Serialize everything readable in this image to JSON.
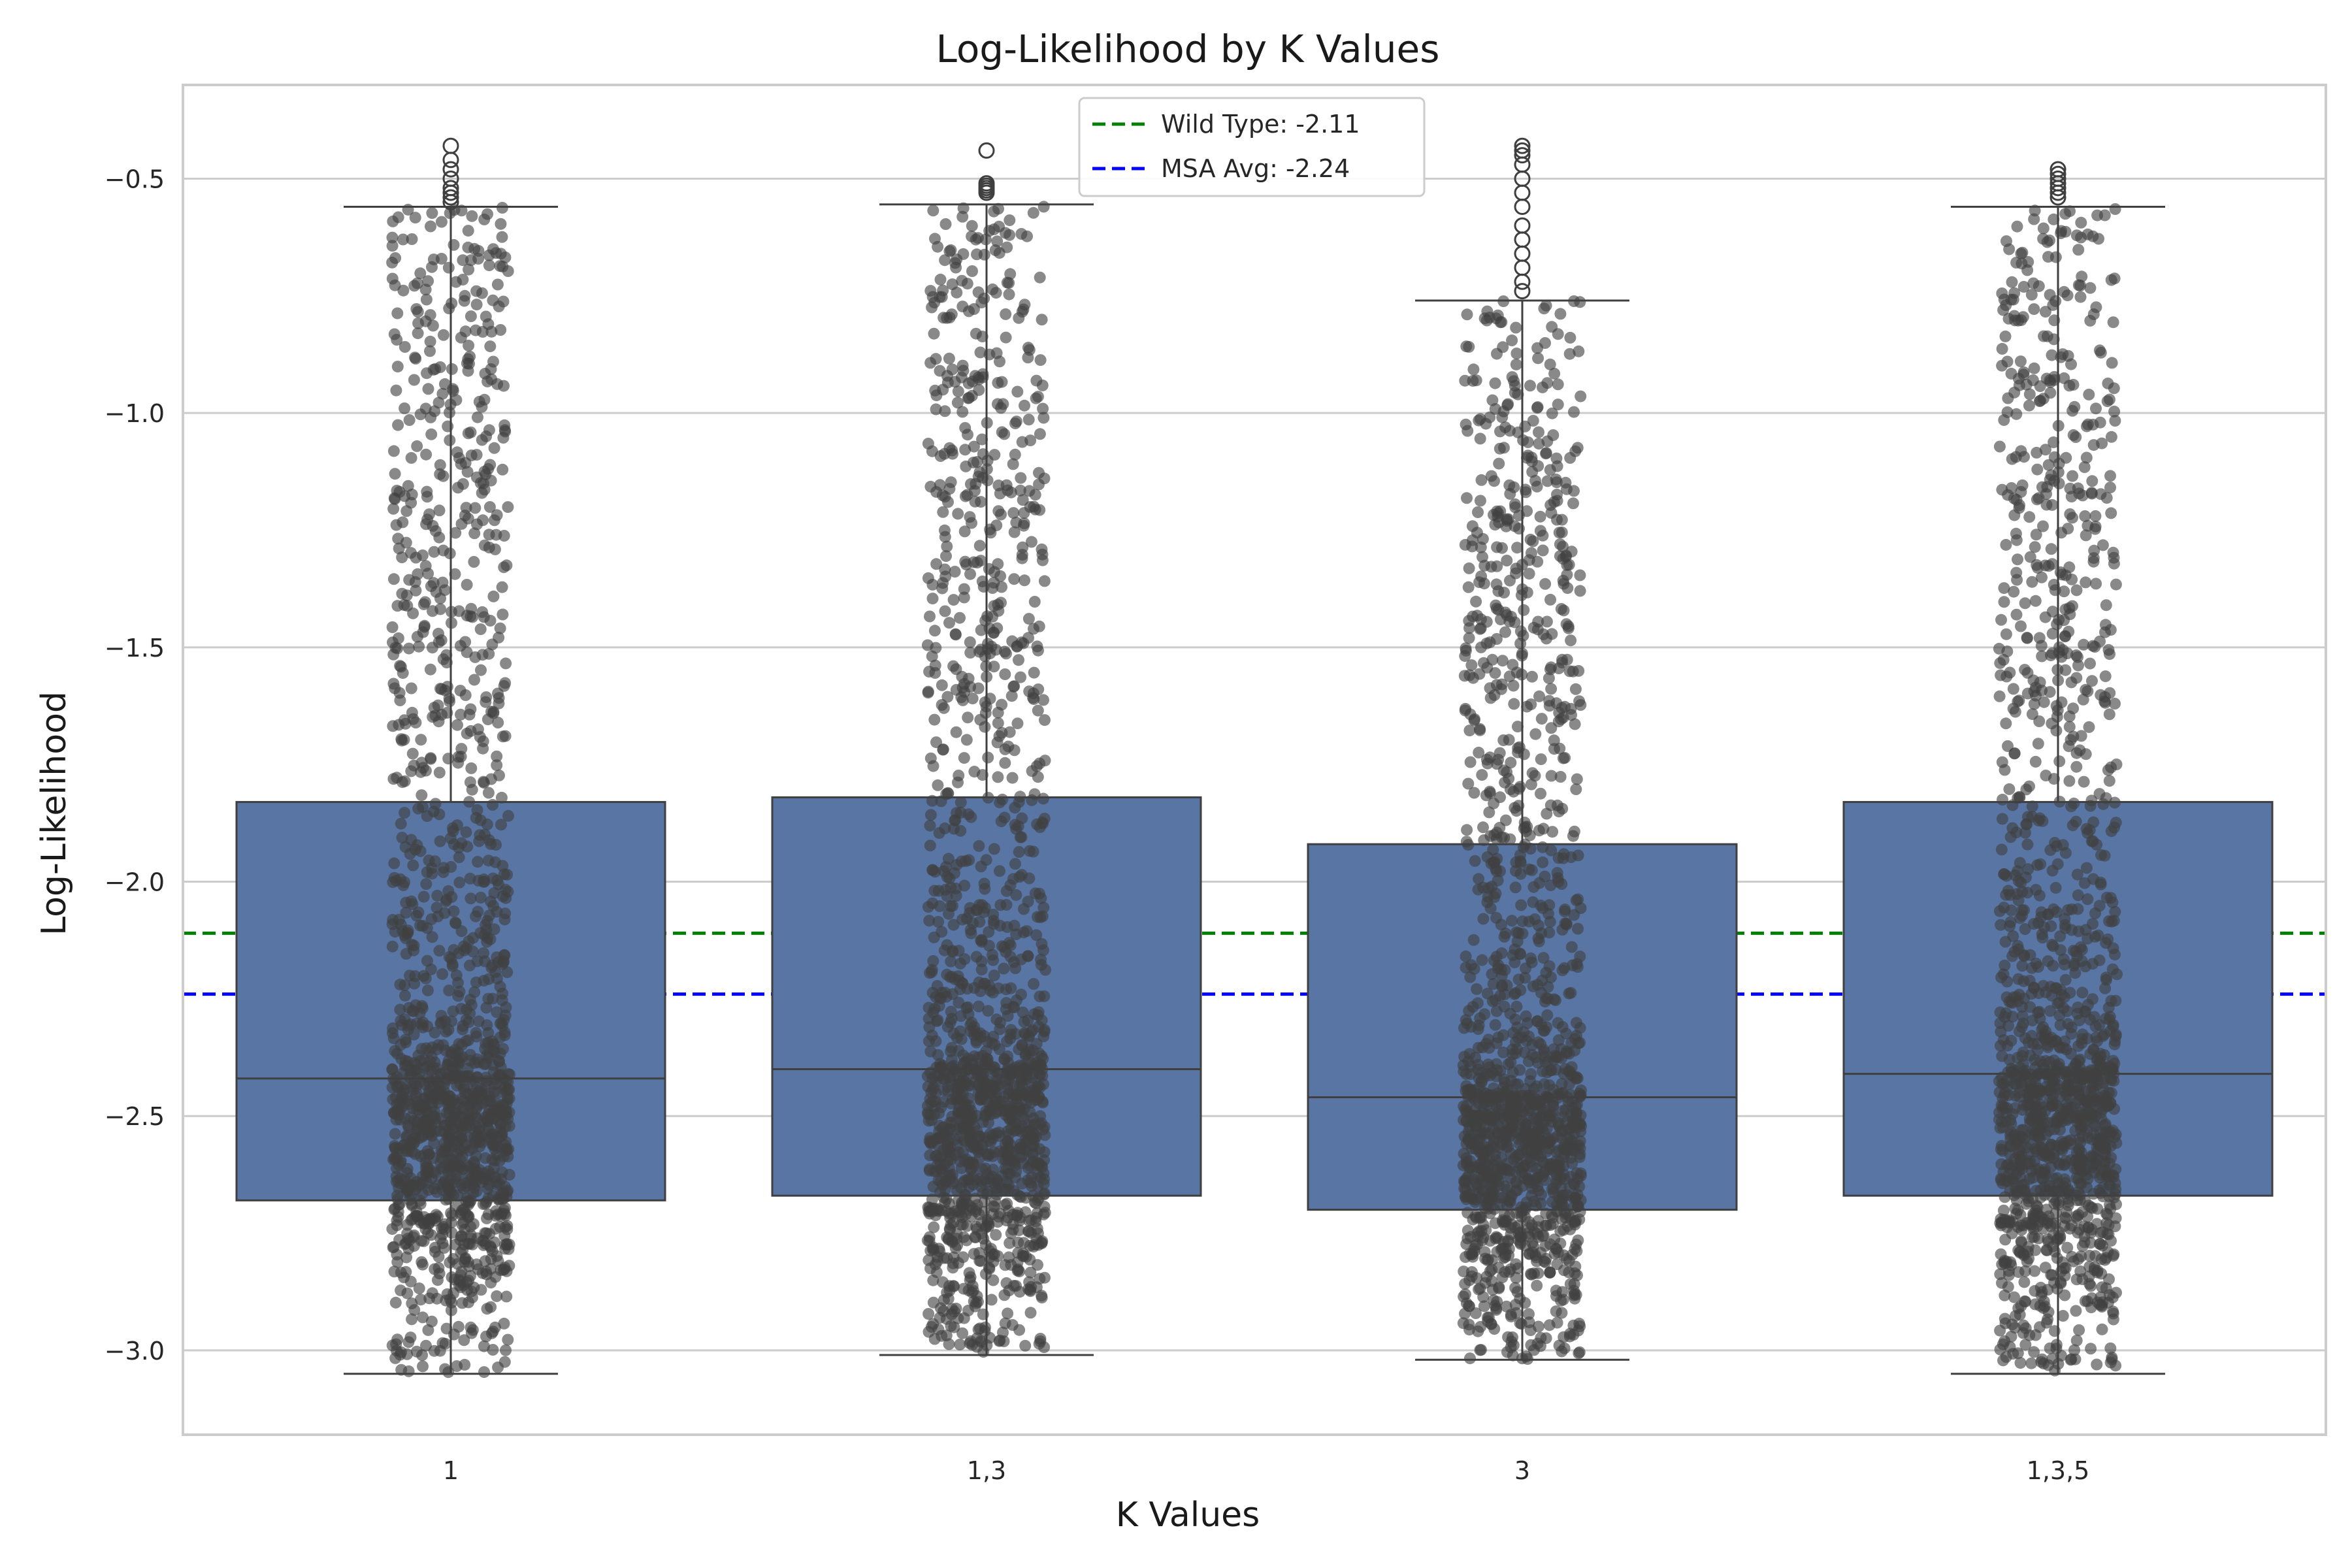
{
  "chart_data": {
    "type": "box",
    "title": "Log-Likelihood by K Values",
    "xlabel": "K Values",
    "ylabel": "Log-Likelihood",
    "categories": [
      "1",
      "1,3",
      "3",
      "1,3,5"
    ],
    "ylim": [
      -3.18,
      -0.3
    ],
    "yticks": [
      -3.0,
      -2.5,
      -2.0,
      -1.5,
      -1.0,
      -0.5
    ],
    "ytick_labels": [
      "−3.0",
      "−2.5",
      "−2.0",
      "−1.5",
      "−1.0",
      "−0.5"
    ],
    "grid": true,
    "legend_position": "top-center",
    "boxes": [
      {
        "category": "1",
        "whisker_low": -3.05,
        "q1": -2.68,
        "median": -2.42,
        "q3": -1.83,
        "whisker_high": -0.56,
        "outliers": [
          -0.43,
          -0.46,
          -0.48,
          -0.5,
          -0.52,
          -0.53,
          -0.54,
          -0.55
        ]
      },
      {
        "category": "1,3",
        "whisker_low": -3.01,
        "q1": -2.67,
        "median": -2.4,
        "q3": -1.82,
        "whisker_high": -0.555,
        "outliers": [
          -0.44,
          -0.51,
          -0.515,
          -0.52,
          -0.525,
          -0.53
        ]
      },
      {
        "category": "3",
        "whisker_low": -3.02,
        "q1": -2.7,
        "median": -2.46,
        "q3": -1.92,
        "whisker_high": -0.76,
        "outliers": [
          -0.43,
          -0.44,
          -0.45,
          -0.47,
          -0.5,
          -0.53,
          -0.56,
          -0.6,
          -0.63,
          -0.66,
          -0.69,
          -0.72,
          -0.74
        ]
      },
      {
        "category": "1,3,5",
        "whisker_low": -3.05,
        "q1": -2.67,
        "median": -2.41,
        "q3": -1.83,
        "whisker_high": -0.56,
        "outliers": [
          -0.48,
          -0.49,
          -0.5,
          -0.51,
          -0.52,
          -0.53,
          -0.54
        ]
      }
    ],
    "reference_lines": [
      {
        "label": "Wild Type: -2.11",
        "value": -2.11,
        "color": "#008000",
        "style": "dashed"
      },
      {
        "label": "MSA Avg: -2.24",
        "value": -2.24,
        "color": "#0000ff",
        "style": "dashed"
      }
    ],
    "colors": {
      "box_fill": "#5875a4",
      "box_edge": "#3f3f3f",
      "points": "#404040",
      "grid": "#cccccc",
      "frame": "#cccccc"
    }
  }
}
